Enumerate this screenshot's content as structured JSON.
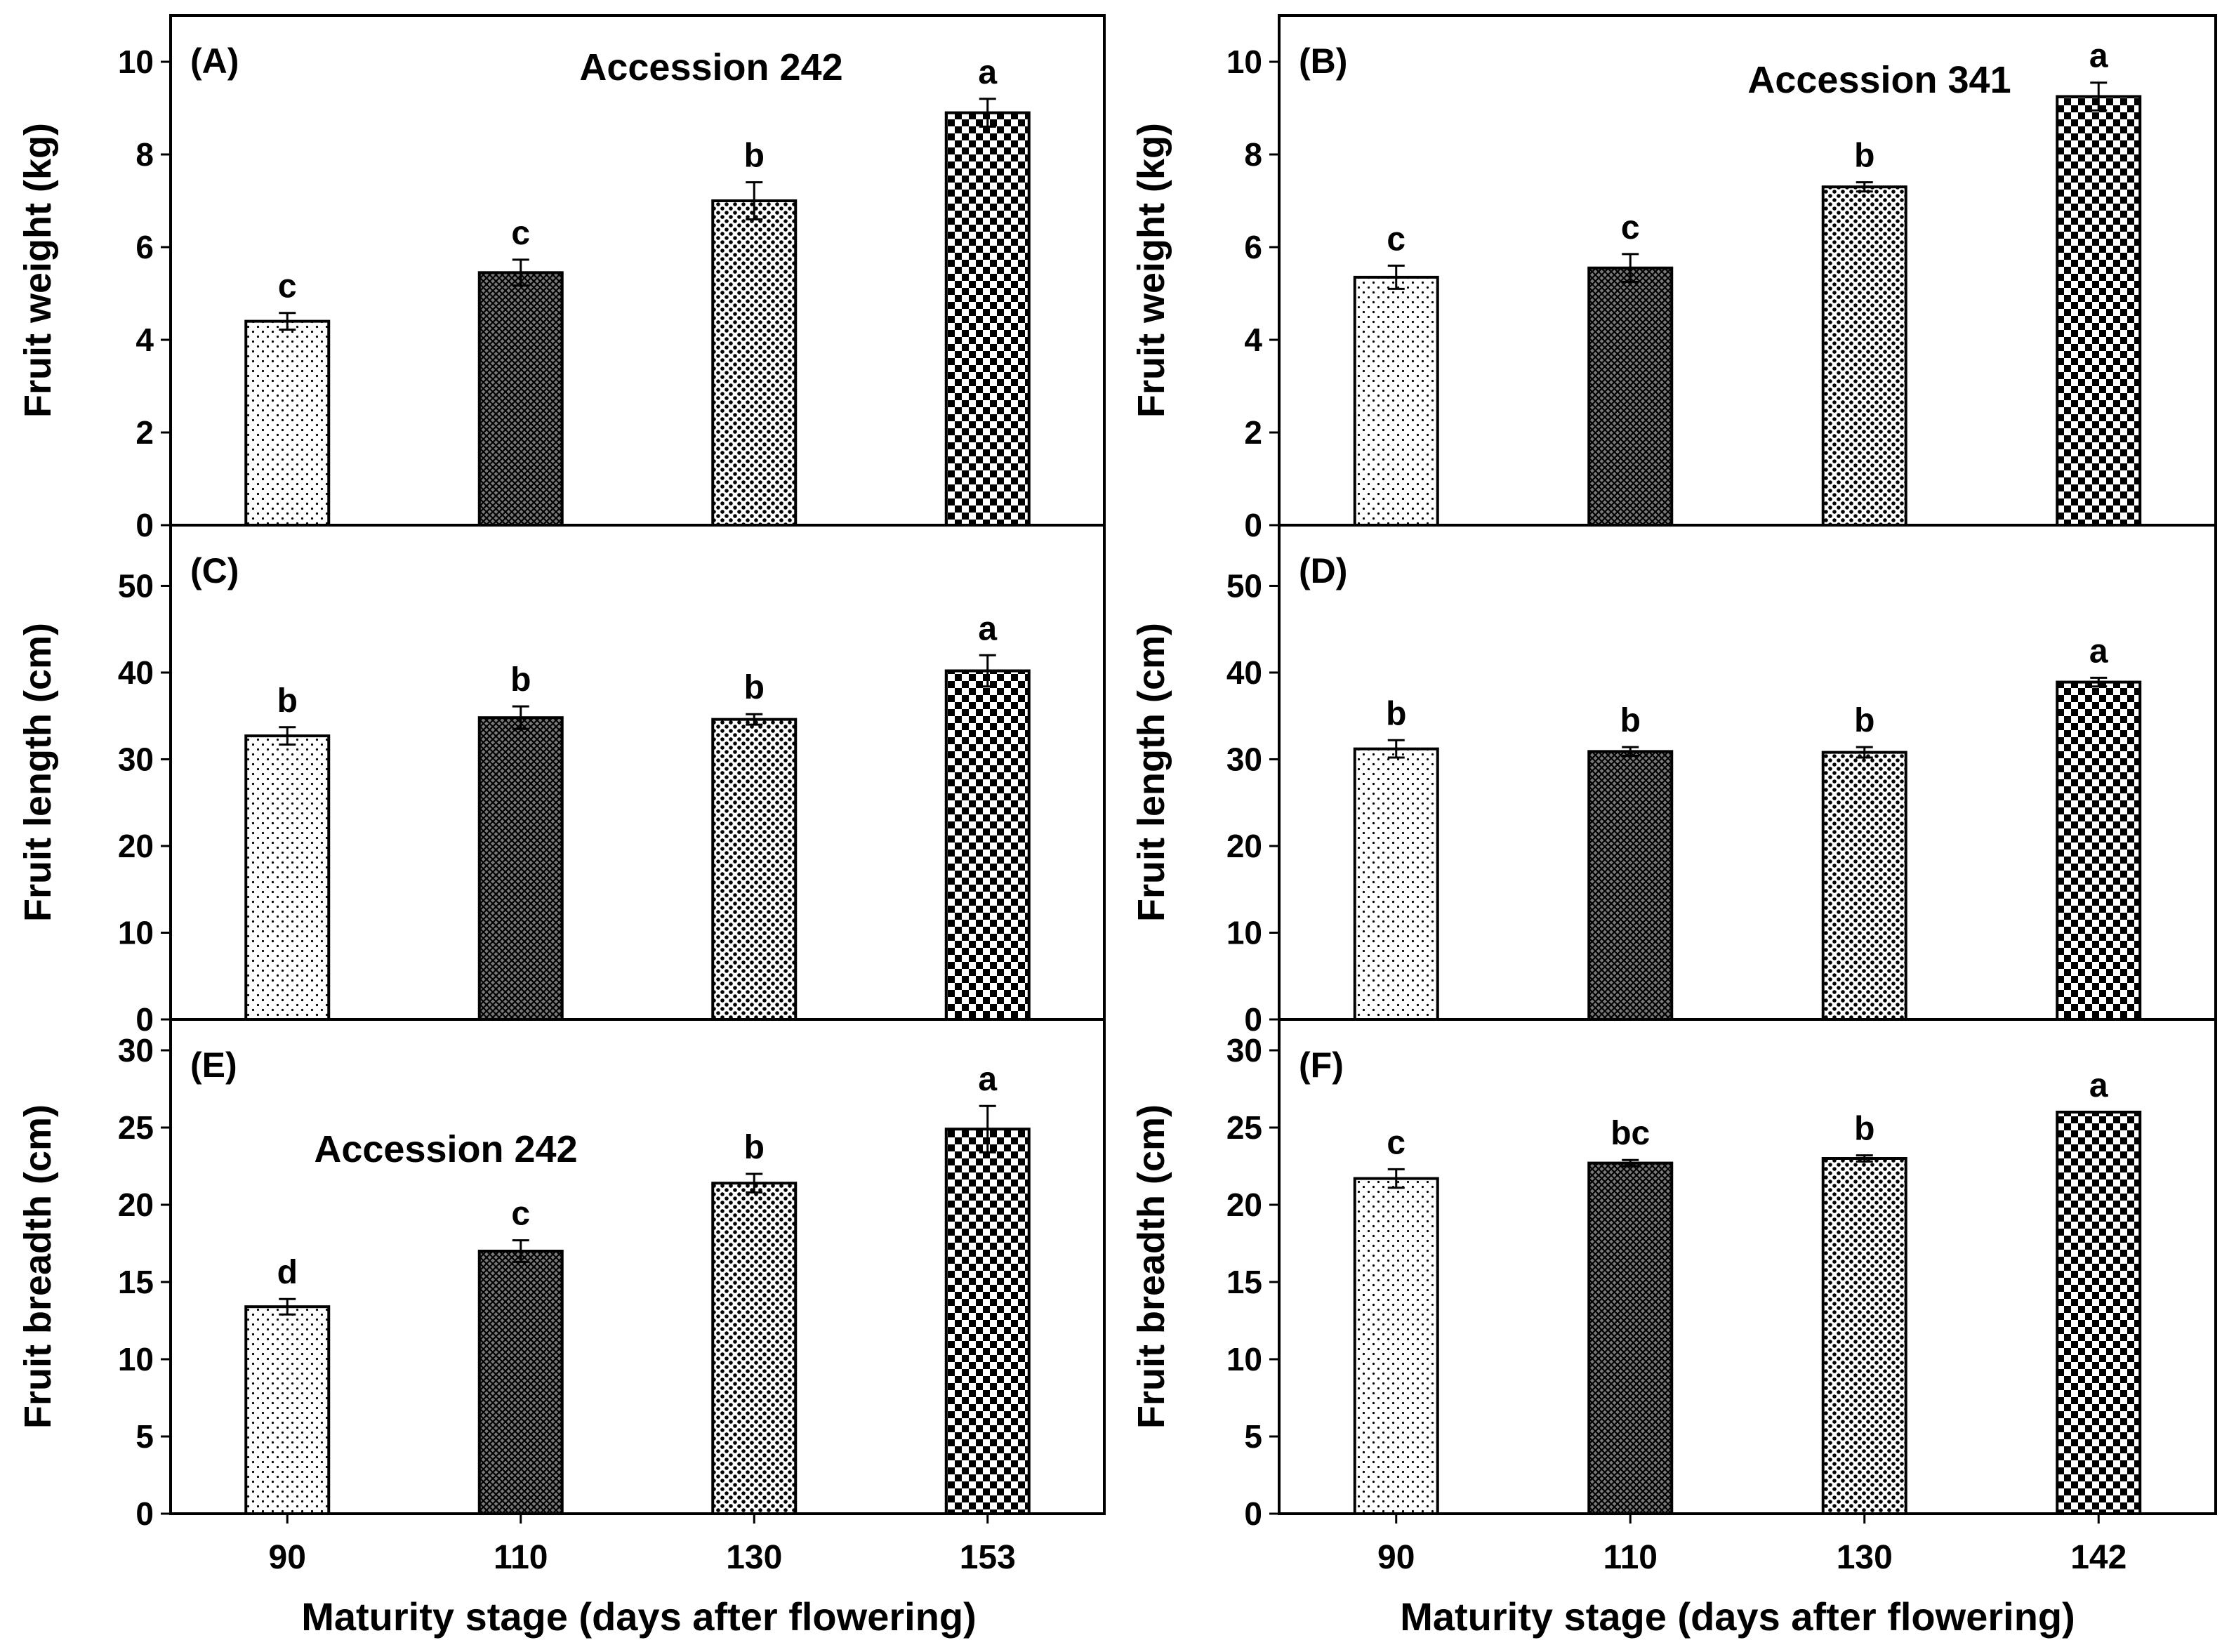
{
  "figure": {
    "xlabel_left": "Maturity stage (days after flowering)",
    "xlabel_right": "Maturity stage (days after flowering)"
  },
  "chart_data": [
    {
      "id": "A",
      "type": "bar",
      "panel_label": "(A)",
      "title": "Accession 242",
      "ylabel": "Fruit weight (kg)",
      "ylim": [
        0,
        11
      ],
      "yticks": [
        0,
        2,
        4,
        6,
        8,
        10
      ],
      "categories": [
        "90",
        "110",
        "130",
        "153"
      ],
      "values": [
        4.4,
        5.45,
        7.0,
        8.9
      ],
      "errors": [
        0.18,
        0.28,
        0.4,
        0.3
      ],
      "letters": [
        "c",
        "c",
        "b",
        "a"
      ],
      "show_xticks": false
    },
    {
      "id": "B",
      "type": "bar",
      "panel_label": "(B)",
      "title": "Accession 341",
      "ylabel": "Fruit weight (kg)",
      "ylim": [
        0,
        11
      ],
      "yticks": [
        0,
        2,
        4,
        6,
        8,
        10
      ],
      "categories": [
        "90",
        "110",
        "130",
        "142"
      ],
      "values": [
        5.35,
        5.55,
        7.3,
        9.25
      ],
      "errors": [
        0.25,
        0.3,
        0.1,
        0.3
      ],
      "letters": [
        "c",
        "c",
        "b",
        "a"
      ],
      "show_xticks": false
    },
    {
      "id": "C",
      "type": "bar",
      "panel_label": "(C)",
      "title": "",
      "ylabel": "Fruit length (cm)",
      "ylim": [
        0,
        57
      ],
      "yticks": [
        0,
        10,
        20,
        30,
        40,
        50
      ],
      "categories": [
        "90",
        "110",
        "130",
        "153"
      ],
      "values": [
        32.7,
        34.8,
        34.6,
        40.2
      ],
      "errors": [
        1.0,
        1.3,
        0.6,
        1.8
      ],
      "letters": [
        "b",
        "b",
        "b",
        "a"
      ],
      "show_xticks": false
    },
    {
      "id": "D",
      "type": "bar",
      "panel_label": "(D)",
      "title": "",
      "ylabel": "Fruit length (cm)",
      "ylim": [
        0,
        57
      ],
      "yticks": [
        0,
        10,
        20,
        30,
        40,
        50
      ],
      "categories": [
        "90",
        "110",
        "130",
        "142"
      ],
      "values": [
        31.2,
        30.9,
        30.8,
        38.9
      ],
      "errors": [
        1.0,
        0.5,
        0.6,
        0.5
      ],
      "letters": [
        "b",
        "b",
        "b",
        "a"
      ],
      "show_xticks": false
    },
    {
      "id": "E",
      "type": "bar",
      "panel_label": "(E)",
      "title": "Accession 242",
      "ylabel": "Fruit breadth (cm)",
      "ylim": [
        0,
        32
      ],
      "yticks": [
        0,
        5,
        10,
        15,
        20,
        25,
        30
      ],
      "categories": [
        "90",
        "110",
        "130",
        "153"
      ],
      "values": [
        13.4,
        17.0,
        21.4,
        24.9
      ],
      "errors": [
        0.5,
        0.7,
        0.6,
        1.5
      ],
      "letters": [
        "d",
        "c",
        "b",
        "a"
      ],
      "show_xticks": true
    },
    {
      "id": "F",
      "type": "bar",
      "panel_label": "(F)",
      "title": "",
      "ylabel": "Fruit breadth (cm)",
      "ylim": [
        0,
        32
      ],
      "yticks": [
        0,
        5,
        10,
        15,
        20,
        25,
        30
      ],
      "categories": [
        "90",
        "110",
        "130",
        "142"
      ],
      "values": [
        21.7,
        22.7,
        23.0,
        26.0
      ],
      "errors": [
        0.6,
        0.2,
        0.2,
        0.0
      ],
      "letters": [
        "c",
        "bc",
        "b",
        "a"
      ],
      "show_xticks": true
    }
  ]
}
